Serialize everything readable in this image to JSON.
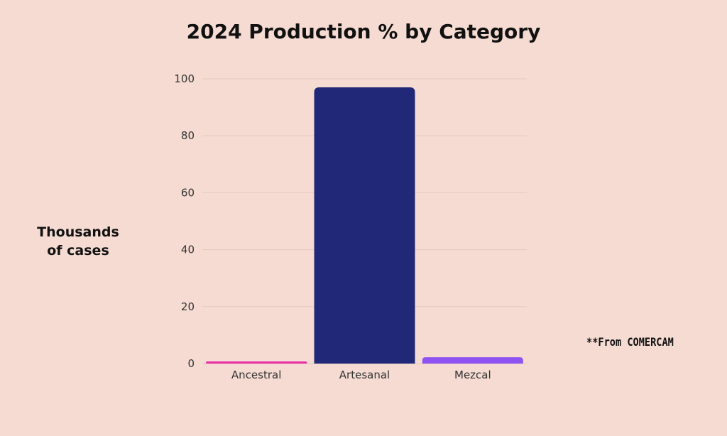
{
  "chart_data": {
    "type": "bar",
    "title": "2024 Production % by Category",
    "ylabel": "Thousands of cases",
    "xlabel": "",
    "categories": [
      "Ancestral",
      "Artesanal",
      "Mezcal"
    ],
    "values": [
      0.5,
      97,
      2.2
    ],
    "colors": [
      "#ea2fa6",
      "#212877",
      "#8e52f2"
    ],
    "ylim": [
      0,
      100
    ],
    "yticks": [
      0,
      20,
      40,
      60,
      80,
      100
    ],
    "grid": true
  },
  "footnote": "**From COMERCAM"
}
